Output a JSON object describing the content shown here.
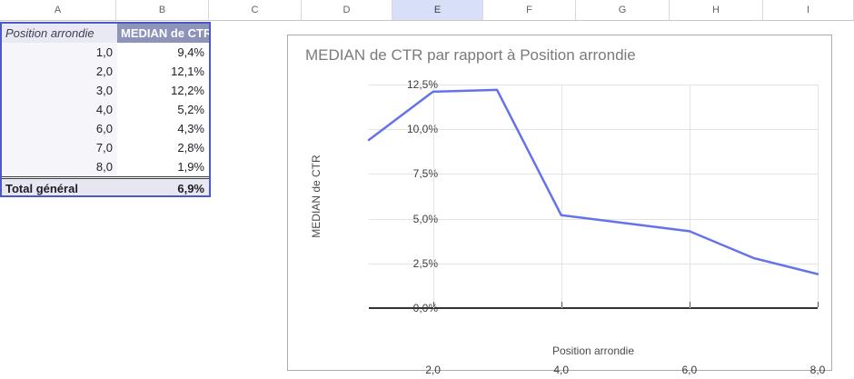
{
  "sheet": {
    "column_headers": [
      "A",
      "B",
      "C",
      "D",
      "E",
      "F",
      "G",
      "H",
      "I"
    ],
    "selected_column": "E"
  },
  "pivot_table": {
    "header": {
      "row_label": "Position arrondie",
      "value_label": "MEDIAN de CTR"
    },
    "rows": [
      {
        "position": "1,0",
        "ctr": "9,4%"
      },
      {
        "position": "2,0",
        "ctr": "12,1%"
      },
      {
        "position": "3,0",
        "ctr": "12,2%"
      },
      {
        "position": "4,0",
        "ctr": "5,2%"
      },
      {
        "position": "6,0",
        "ctr": "4,3%"
      },
      {
        "position": "7,0",
        "ctr": "2,8%"
      },
      {
        "position": "8,0",
        "ctr": "1,9%"
      }
    ],
    "total": {
      "label": "Total général",
      "value": "6,9%"
    }
  },
  "chart_data": {
    "type": "line",
    "title": "MEDIAN de CTR par rapport à Position arrondie",
    "xlabel": "Position arrondie",
    "ylabel": "MEDIAN de CTR",
    "x": [
      1,
      2,
      3,
      4,
      6,
      7,
      8
    ],
    "values": [
      9.4,
      12.1,
      12.2,
      5.2,
      4.3,
      2.8,
      1.9
    ],
    "xlim": [
      1,
      8
    ],
    "ylim": [
      0,
      12.5
    ],
    "grid": true,
    "legend": "none",
    "y_ticks": [
      {
        "label": "0,0%",
        "value": 0
      },
      {
        "label": "2,5%",
        "value": 2.5
      },
      {
        "label": "5,0%",
        "value": 5
      },
      {
        "label": "7,5%",
        "value": 7.5
      },
      {
        "label": "10,0%",
        "value": 10
      },
      {
        "label": "12,5%",
        "value": 12.5
      }
    ],
    "x_ticks": [
      {
        "label": "2,0",
        "value": 2
      },
      {
        "label": "4,0",
        "value": 4
      },
      {
        "label": "6,0",
        "value": 6
      },
      {
        "label": "8,0",
        "value": 8
      }
    ],
    "colors": {
      "line": "#6573e8",
      "gridline": "#e3e3e3",
      "axis": "#333333"
    }
  }
}
